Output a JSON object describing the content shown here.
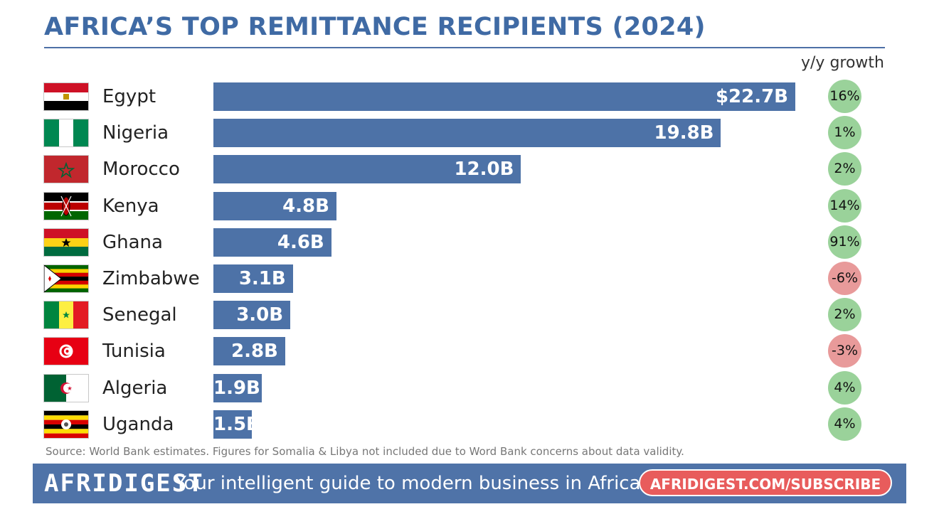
{
  "chart_data": {
    "type": "bar",
    "orientation": "horizontal",
    "title": "AFRICA’S TOP REMITTANCE RECIPIENTS (2024)",
    "growth_header": "y/y growth",
    "xlim": [
      0,
      22.7
    ],
    "grid": false,
    "categories": [
      "Egypt",
      "Nigeria",
      "Morocco",
      "Kenya",
      "Ghana",
      "Zimbabwe",
      "Senegal",
      "Tunisia",
      "Algeria",
      "Uganda"
    ],
    "values": [
      22.7,
      19.8,
      12.0,
      4.8,
      4.6,
      3.1,
      3.0,
      2.8,
      1.9,
      1.5
    ],
    "value_labels": [
      "$22.7B",
      "19.8B",
      "12.0B",
      "4.8B",
      "4.6B",
      "3.1B",
      "3.0B",
      "2.8B",
      "1.9B",
      "1.5B"
    ],
    "growth": [
      16,
      1,
      2,
      14,
      91,
      -6,
      2,
      -3,
      4,
      4
    ],
    "growth_labels": [
      "16%",
      "1%",
      "2%",
      "14%",
      "91%",
      "-6%",
      "2%",
      "-3%",
      "4%",
      "4%"
    ]
  },
  "source": "Source: World Bank estimates. Figures for Somalia & Libya not included due to Word Bank concerns about data validity.",
  "footer": {
    "brand": "AFRIDIGEST",
    "tagline": "Your intelligent guide to modern business in Africa.",
    "subscribe": "AFRIDIGEST.COM/SUBSCRIBE"
  },
  "colors": {
    "title": "#3f6aa4",
    "bar": "#4d72a7",
    "growth_positive": "#9ad29a",
    "growth_negative": "#e89a9a",
    "footer": "#4f73a8",
    "subscribe": "#e85c5c"
  },
  "flags": [
    "egypt-flag-icon",
    "nigeria-flag-icon",
    "morocco-flag-icon",
    "kenya-flag-icon",
    "ghana-flag-icon",
    "zimbabwe-flag-icon",
    "senegal-flag-icon",
    "tunisia-flag-icon",
    "algeria-flag-icon",
    "uganda-flag-icon"
  ]
}
